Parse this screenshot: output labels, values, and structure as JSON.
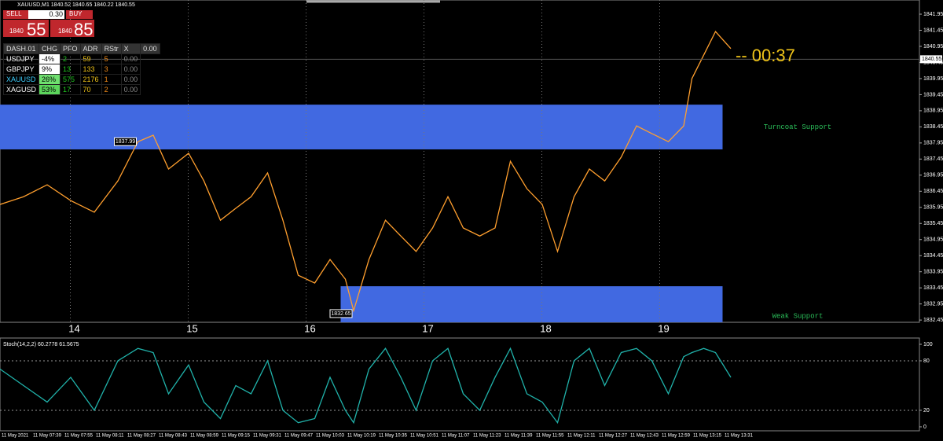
{
  "header": {
    "symbol_line": "XAUUSD,M1  1840.52 1840.65 1840.22 1840.55"
  },
  "trade_panel": {
    "sell": "SELL",
    "buy": "BUY",
    "lot": "0.30",
    "sell_big": "1840",
    "sell_pips": "55",
    "buy_big": "1840",
    "buy_pips": "85"
  },
  "dashboard": {
    "headers": [
      "DASH.01",
      "CHG",
      "PFO",
      "ADR",
      "RStr",
      "X",
      "0.00"
    ],
    "rows": [
      [
        "USDJPY",
        "-4%",
        "2",
        "59",
        "5",
        "0.00"
      ],
      [
        "GBPJPY",
        "9%",
        "13",
        "133",
        "3",
        "0.00"
      ],
      [
        "XAUUSD",
        "26%",
        "575",
        "2176",
        "1",
        "0.00"
      ],
      [
        "XAGUSD",
        "53%",
        "17",
        "70",
        "2",
        "0.00"
      ]
    ]
  },
  "chart_data": [
    {
      "type": "line",
      "grid": true,
      "x": [
        13.37,
        13.57,
        13.77,
        13.97,
        14.17,
        14.37,
        14.54,
        14.67,
        14.8,
        14.97,
        15.1,
        15.24,
        15.37,
        15.5,
        15.64,
        15.77,
        15.9,
        16.04,
        16.17,
        16.3,
        16.37,
        16.5,
        16.64,
        16.77,
        16.9,
        17.04,
        17.17,
        17.3,
        17.44,
        17.57,
        17.7,
        17.84,
        17.97,
        18.1,
        18.24,
        18.37,
        18.5,
        18.64,
        18.77,
        18.9,
        19.04,
        19.17,
        19.24,
        19.34,
        19.44,
        19.57
      ],
      "series": [
        {
          "color": "#ff9f2e",
          "values": [
            1836.04,
            1836.28,
            1836.65,
            1836.16,
            1835.8,
            1836.77,
            1837.99,
            1838.19,
            1837.14,
            1837.63,
            1836.77,
            1835.55,
            1835.92,
            1836.28,
            1837.02,
            1835.55,
            1833.84,
            1833.6,
            1834.33,
            1833.72,
            1832.74,
            1834.33,
            1835.55,
            1835.06,
            1834.58,
            1835.31,
            1836.28,
            1835.31,
            1835.06,
            1835.31,
            1837.38,
            1836.53,
            1836.04,
            1834.58,
            1836.28,
            1837.14,
            1836.77,
            1837.51,
            1838.48,
            1838.24,
            1837.99,
            1838.48,
            1839.95,
            1840.68,
            1841.41,
            1840.88
          ]
        }
      ],
      "xlim": [
        13.37,
        21.17
      ],
      "xticks": [
        14,
        15,
        16,
        17,
        18,
        19
      ],
      "ylim": [
        1832.38,
        1842.39
      ],
      "yticks": [
        1832.45,
        1832.95,
        1833.45,
        1833.95,
        1834.45,
        1834.95,
        1835.45,
        1835.95,
        1836.45,
        1836.95,
        1837.45,
        1837.95,
        1838.45,
        1838.95,
        1839.45,
        1839.95,
        1840.45,
        1840.95,
        1841.45,
        1841.95
      ],
      "zones": [
        {
          "label": "Turncoat Support",
          "from": 1837.75,
          "to": 1839.14,
          "x": [
            13.37,
            19.5
          ]
        },
        {
          "label": "Weak Support",
          "from": 1832.38,
          "to": 1833.5,
          "x": [
            16.26,
            19.5
          ]
        }
      ],
      "zone_color": "#4169e1",
      "price_labels": [
        {
          "x": 14.54,
          "value": 1837.99
        },
        {
          "x": 16.37,
          "value": 1832.65
        }
      ],
      "last_price": 1840.55,
      "countdown": "-- 00:37"
    },
    {
      "type": "line",
      "title": "Stoch(14,2,2) 60.2778 61.5675",
      "x": [
        13.37,
        13.57,
        13.77,
        13.97,
        14.17,
        14.37,
        14.54,
        14.67,
        14.8,
        14.97,
        15.1,
        15.24,
        15.37,
        15.5,
        15.64,
        15.77,
        15.9,
        16.04,
        16.17,
        16.3,
        16.37,
        16.5,
        16.64,
        16.77,
        16.9,
        17.04,
        17.17,
        17.3,
        17.44,
        17.57,
        17.7,
        17.84,
        17.97,
        18.1,
        18.24,
        18.37,
        18.5,
        18.64,
        18.77,
        18.9,
        19.04,
        19.17,
        19.24,
        19.34,
        19.44,
        19.57
      ],
      "series": [
        {
          "color": "#20b2aa",
          "values": [
            70,
            50,
            30,
            60,
            20,
            80,
            95,
            90,
            40,
            75,
            30,
            10,
            50,
            40,
            80,
            20,
            5,
            10,
            60,
            20,
            5,
            70,
            95,
            60,
            20,
            80,
            95,
            40,
            20,
            60,
            95,
            40,
            30,
            5,
            80,
            95,
            50,
            90,
            95,
            80,
            40,
            85,
            90,
            95,
            90,
            60
          ]
        }
      ],
      "xlim": [
        13.37,
        21.17
      ],
      "ylim": [
        -4.8,
        105.7
      ],
      "yticks": [
        0,
        20,
        80,
        100
      ],
      "time_labels": [
        "11 May 2021",
        "11 May 07:39",
        "11 May 07:55",
        "11 May 08:11",
        "11 May 08:27",
        "11 May 08:43",
        "11 May 08:59",
        "11 May 09:15",
        "11 May 09:31",
        "11 May 09:47",
        "11 May 10:03",
        "11 May 10:19",
        "11 May 10:35",
        "11 May 10:51",
        "11 May 11:07",
        "11 May 11:23",
        "11 May 11:39",
        "11 May 11:55",
        "11 May 12:11",
        "11 May 12:27",
        "11 May 12:43",
        "11 May 12:59",
        "11 May 13:15",
        "11 May 13:31"
      ]
    }
  ]
}
